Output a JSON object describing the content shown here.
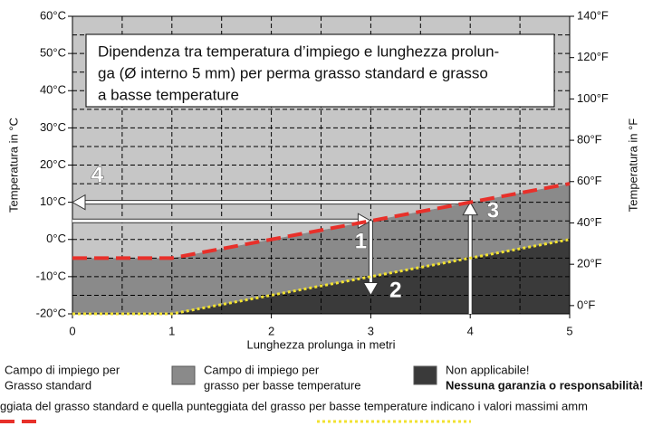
{
  "chart_data": {
    "type": "line",
    "title_lines": [
      "Dipendenza tra temperatura d’impiego e lunghezza prolun-",
      "ga (Ø interno 5 mm) per perma grasso standard e grasso",
      "a basse temperature"
    ],
    "xlabel": "Lunghezza prolunga in metri",
    "ylabel": "Temperatura in °C",
    "y2label": "Temperatura in °F",
    "xlim": [
      0,
      5
    ],
    "ylim": [
      -20,
      60
    ],
    "y2lim": [
      -4,
      140
    ],
    "xticks": [
      0,
      1,
      2,
      3,
      4,
      5
    ],
    "yticks": [
      {
        "value": -20,
        "label": "-20°C"
      },
      {
        "value": -10,
        "label": "-10°C"
      },
      {
        "value": 0,
        "label": "0°C"
      },
      {
        "value": 10,
        "label": "10°C"
      },
      {
        "value": 20,
        "label": "20°C"
      },
      {
        "value": 30,
        "label": "30°C"
      },
      {
        "value": 40,
        "label": "40°C"
      },
      {
        "value": 50,
        "label": "50°C"
      },
      {
        "value": 60,
        "label": "60°C"
      }
    ],
    "y2ticks": [
      {
        "value": 0,
        "label": "0°F"
      },
      {
        "value": 20,
        "label": "20°F"
      },
      {
        "value": 40,
        "label": "40°F"
      },
      {
        "value": 60,
        "label": "60°F"
      },
      {
        "value": 80,
        "label": "80°F"
      },
      {
        "value": 100,
        "label": "100°F"
      },
      {
        "value": 120,
        "label": "120°F"
      },
      {
        "value": 140,
        "label": "140°F"
      }
    ],
    "minor_xticks": [
      0.5,
      1.5,
      2.5,
      3.5,
      4.5
    ],
    "minor_yticks": [
      -15,
      -5,
      5,
      15,
      25,
      35,
      45,
      55
    ],
    "grid": true,
    "series": [
      {
        "color": "#e8302a",
        "style": "dashed",
        "x": [
          0,
          1,
          5
        ],
        "y": [
          -5,
          -5,
          15
        ]
      },
      {
        "color": "#f2e230",
        "style": "dotted",
        "x": [
          0,
          1,
          5
        ],
        "y": [
          -20,
          -20,
          0
        ]
      }
    ],
    "regions": [
      {
        "label_lines": [
          "Campo di impiego per",
          "Grasso standard"
        ],
        "color": "#c6c6c6"
      },
      {
        "label_lines": [
          "Campo di impiego per",
          "grasso per basse temperature"
        ],
        "color": "#8a8a8a"
      },
      {
        "label_lines": [
          "Non applicabile!",
          "Nessuna garanzia o responsabilità!"
        ],
        "color": "#3a3a3a"
      }
    ],
    "arrows": [
      {
        "from": [
          0,
          5
        ],
        "to": [
          3,
          5
        ]
      },
      {
        "from": [
          3,
          5
        ],
        "to": [
          3,
          -15
        ]
      },
      {
        "from": [
          4,
          -20
        ],
        "to": [
          4,
          10
        ]
      },
      {
        "from": [
          4,
          10
        ],
        "to": [
          0,
          10
        ]
      }
    ],
    "annotations": [
      {
        "text": "1",
        "x": 2.9,
        "y": -0.8
      },
      {
        "text": "2",
        "x": 3.25,
        "y": -14
      },
      {
        "text": "3",
        "x": 4.23,
        "y": 7.4
      },
      {
        "text": "4",
        "x": 0.25,
        "y": 17
      }
    ],
    "footnote": "ggiata del grasso standard e quella punteggiata del grasso per basse temperature indicano i valori massimi amm"
  }
}
